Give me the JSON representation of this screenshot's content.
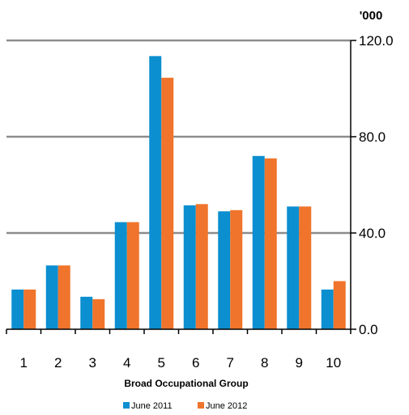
{
  "chart_data": {
    "type": "bar",
    "unit_label": "'000",
    "xlabel": "Broad Occupational Group",
    "ylabel": "",
    "ylim": [
      0,
      120
    ],
    "yticks": [
      "0.0",
      "40.0",
      "80.0",
      "120.0"
    ],
    "y_axis_side": "right",
    "grid": true,
    "legend_position": "bottom",
    "categories": [
      "1",
      "2",
      "3",
      "4",
      "5",
      "6",
      "7",
      "8",
      "9",
      "10"
    ],
    "series": [
      {
        "name": "June 2011",
        "color": "#0b8fd0",
        "values": [
          16.5,
          26.5,
          13.5,
          44.5,
          113.5,
          51.5,
          49.0,
          72.0,
          51.0,
          16.5
        ]
      },
      {
        "name": "June 2012",
        "color": "#f0742b",
        "values": [
          16.5,
          26.5,
          12.5,
          44.5,
          104.5,
          52.0,
          49.5,
          71.0,
          51.0,
          20.0
        ]
      }
    ]
  }
}
